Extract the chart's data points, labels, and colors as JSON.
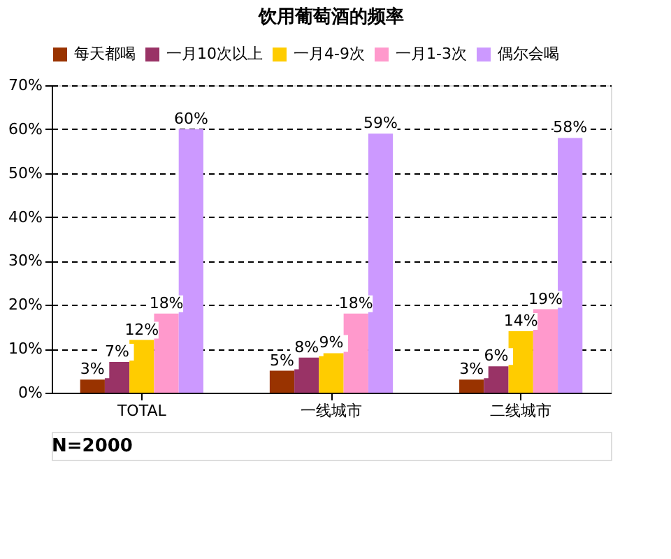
{
  "chart_data": {
    "type": "bar",
    "title": "饮用葡萄酒的频率",
    "categories": [
      "TOTAL",
      "一线城市",
      "二线城市"
    ],
    "series": [
      {
        "name": "每天都喝",
        "color": "#993300",
        "values": [
          3,
          5,
          3
        ],
        "value_labels": [
          "3%",
          "5%",
          "3%"
        ]
      },
      {
        "name": "一月10次以上",
        "color": "#993366",
        "values": [
          7,
          8,
          6
        ],
        "value_labels": [
          "7%",
          "8%",
          "6%"
        ]
      },
      {
        "name": "一月4-9次",
        "color": "#ffcc00",
        "values": [
          12,
          9,
          14
        ],
        "value_labels": [
          "12%",
          "9%",
          "14%"
        ]
      },
      {
        "name": "一月1-3次",
        "color": "#ff99cc",
        "values": [
          18,
          18,
          19
        ],
        "value_labels": [
          "18%",
          "18%",
          "19%"
        ]
      },
      {
        "name": "偶尔会喝",
        "color": "#cc99ff",
        "values": [
          60,
          59,
          58
        ],
        "value_labels": [
          "60%",
          "59%",
          "58%"
        ]
      }
    ],
    "ylim": [
      0,
      70
    ],
    "yticks": [
      {
        "value": 0,
        "label": "0%"
      },
      {
        "value": 10,
        "label": "10%"
      },
      {
        "value": 20,
        "label": "20%"
      },
      {
        "value": 30,
        "label": "30%"
      },
      {
        "value": 40,
        "label": "40%"
      },
      {
        "value": 50,
        "label": "50%"
      },
      {
        "value": 60,
        "label": "60%"
      },
      {
        "value": 70,
        "label": "70%"
      }
    ],
    "grid": "y",
    "legend": "top",
    "annotations": [
      "N=2000"
    ]
  }
}
